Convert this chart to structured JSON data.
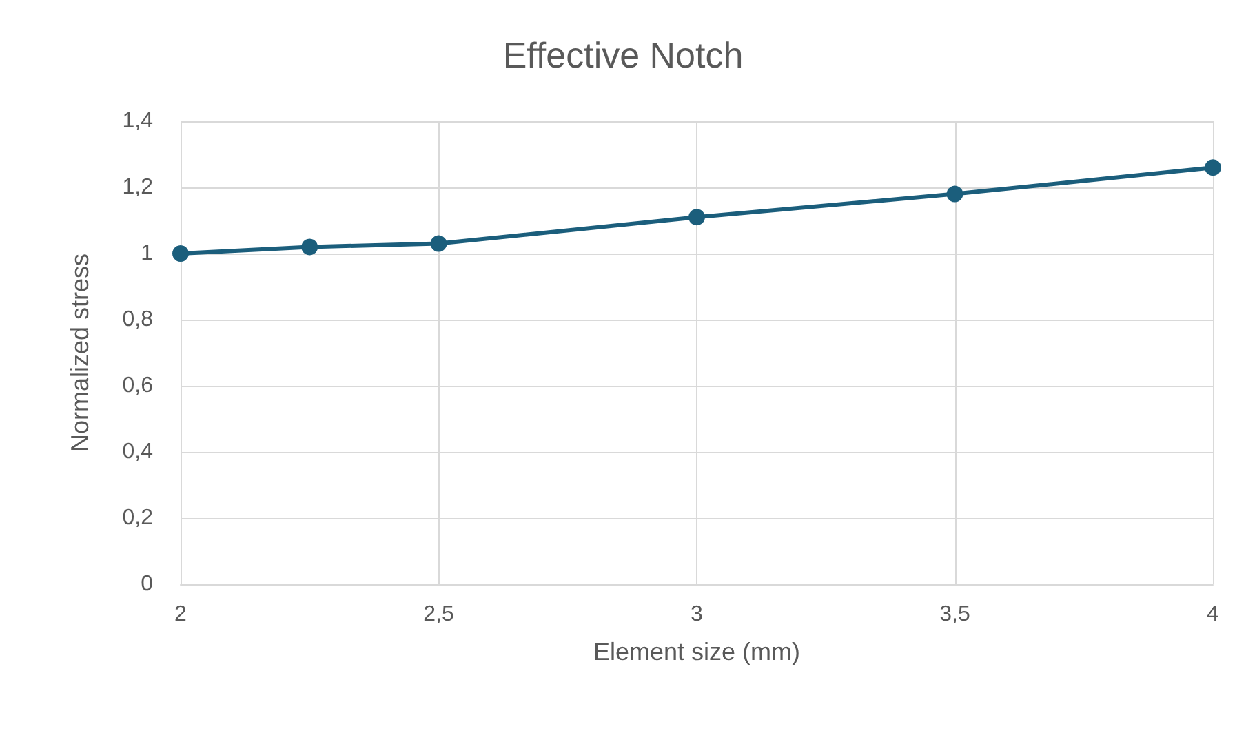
{
  "chart_data": {
    "type": "line",
    "title": "Effective Notch",
    "xlabel": "Element size (mm)",
    "ylabel": "Normalized stress",
    "x": [
      2,
      2.25,
      2.5,
      3,
      3.5,
      4
    ],
    "series": [
      {
        "color": "#1b5e7c",
        "values": [
          1.0,
          1.02,
          1.03,
          1.11,
          1.18,
          1.26
        ]
      }
    ],
    "xlim": [
      2,
      4
    ],
    "xticks": [
      2,
      {
        "value": 2.5,
        "label": "2,5"
      },
      3,
      {
        "value": 3.5,
        "label": "3,5"
      },
      4
    ],
    "ylim": [
      0,
      1.4
    ],
    "yticks": [
      0,
      {
        "value": 0.2,
        "label": "0,2"
      },
      {
        "value": 0.4,
        "label": "0,4"
      },
      {
        "value": 0.6,
        "label": "0,6"
      },
      {
        "value": 0.8,
        "label": "0,8"
      },
      1,
      {
        "value": 1.2,
        "label": "1,2"
      },
      {
        "value": 1.4,
        "label": "1,4"
      }
    ],
    "grid": true,
    "marker": "circle",
    "line_style": "solid"
  }
}
